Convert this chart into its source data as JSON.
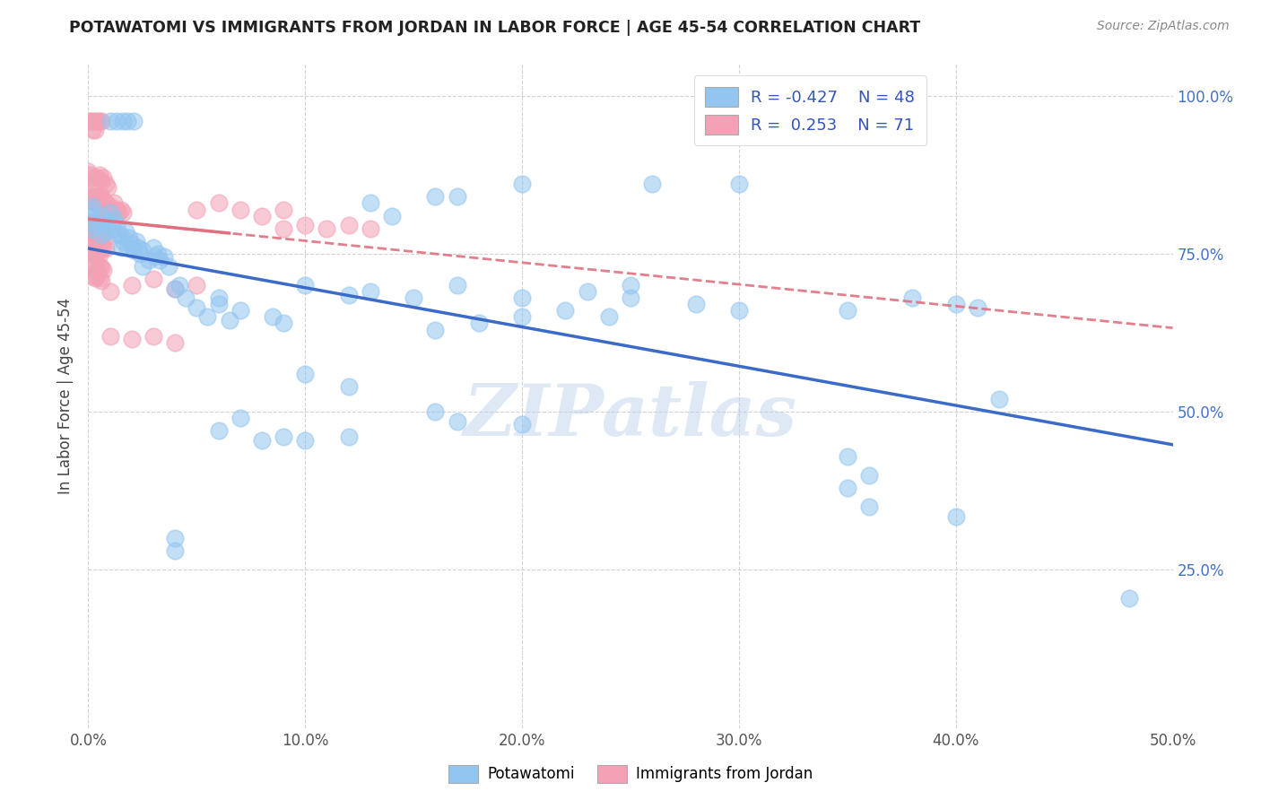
{
  "title": "POTAWATOMI VS IMMIGRANTS FROM JORDAN IN LABOR FORCE | AGE 45-54 CORRELATION CHART",
  "source": "Source: ZipAtlas.com",
  "ylabel": "In Labor Force | Age 45-54",
  "xlim": [
    0.0,
    0.5
  ],
  "ylim": [
    0.0,
    1.05
  ],
  "xticks": [
    0.0,
    0.1,
    0.2,
    0.3,
    0.4,
    0.5
  ],
  "yticks": [
    0.0,
    0.25,
    0.5,
    0.75,
    1.0
  ],
  "legend_r_blue": "-0.427",
  "legend_n_blue": "48",
  "legend_r_pink": "0.253",
  "legend_n_pink": "71",
  "blue_color": "#92C5F0",
  "pink_color": "#F4A0B5",
  "blue_line_color": "#3B6BC8",
  "pink_line_color": "#E07080",
  "watermark_text": "ZIPatlas",
  "blue_scatter": [
    [
      0.001,
      0.82
    ],
    [
      0.001,
      0.79
    ],
    [
      0.001,
      0.81
    ],
    [
      0.002,
      0.825
    ],
    [
      0.003,
      0.795
    ],
    [
      0.005,
      0.8
    ],
    [
      0.006,
      0.81
    ],
    [
      0.006,
      0.78
    ],
    [
      0.007,
      0.795
    ],
    [
      0.008,
      0.785
    ],
    [
      0.009,
      0.8
    ],
    [
      0.01,
      0.815
    ],
    [
      0.011,
      0.79
    ],
    [
      0.012,
      0.805
    ],
    [
      0.013,
      0.795
    ],
    [
      0.014,
      0.78
    ],
    [
      0.015,
      0.76
    ],
    [
      0.015,
      0.78
    ],
    [
      0.016,
      0.77
    ],
    [
      0.017,
      0.785
    ],
    [
      0.018,
      0.76
    ],
    [
      0.019,
      0.775
    ],
    [
      0.02,
      0.765
    ],
    [
      0.021,
      0.755
    ],
    [
      0.022,
      0.77
    ],
    [
      0.023,
      0.76
    ],
    [
      0.024,
      0.75
    ],
    [
      0.025,
      0.755
    ],
    [
      0.025,
      0.73
    ],
    [
      0.028,
      0.74
    ],
    [
      0.03,
      0.76
    ],
    [
      0.031,
      0.745
    ],
    [
      0.032,
      0.75
    ],
    [
      0.033,
      0.74
    ],
    [
      0.035,
      0.745
    ],
    [
      0.037,
      0.73
    ],
    [
      0.04,
      0.695
    ],
    [
      0.042,
      0.7
    ],
    [
      0.045,
      0.68
    ],
    [
      0.05,
      0.665
    ],
    [
      0.055,
      0.65
    ],
    [
      0.06,
      0.67
    ],
    [
      0.065,
      0.645
    ],
    [
      0.07,
      0.66
    ],
    [
      0.085,
      0.65
    ],
    [
      0.09,
      0.64
    ],
    [
      0.06,
      0.68
    ],
    [
      0.13,
      0.83
    ],
    [
      0.16,
      0.84
    ],
    [
      0.17,
      0.84
    ],
    [
      0.2,
      0.86
    ],
    [
      0.14,
      0.81
    ],
    [
      0.26,
      0.86
    ],
    [
      0.3,
      0.86
    ],
    [
      0.01,
      0.96
    ],
    [
      0.013,
      0.96
    ],
    [
      0.016,
      0.96
    ],
    [
      0.018,
      0.96
    ],
    [
      0.021,
      0.96
    ],
    [
      0.1,
      0.7
    ],
    [
      0.12,
      0.685
    ],
    [
      0.13,
      0.69
    ],
    [
      0.15,
      0.68
    ],
    [
      0.17,
      0.7
    ],
    [
      0.2,
      0.68
    ],
    [
      0.23,
      0.69
    ],
    [
      0.25,
      0.7
    ],
    [
      0.28,
      0.67
    ],
    [
      0.16,
      0.63
    ],
    [
      0.18,
      0.64
    ],
    [
      0.2,
      0.65
    ],
    [
      0.22,
      0.66
    ],
    [
      0.24,
      0.65
    ],
    [
      0.07,
      0.49
    ],
    [
      0.1,
      0.56
    ],
    [
      0.12,
      0.54
    ],
    [
      0.16,
      0.5
    ],
    [
      0.17,
      0.485
    ],
    [
      0.2,
      0.48
    ],
    [
      0.25,
      0.68
    ],
    [
      0.3,
      0.66
    ],
    [
      0.35,
      0.66
    ],
    [
      0.38,
      0.68
    ],
    [
      0.4,
      0.67
    ],
    [
      0.41,
      0.665
    ],
    [
      0.04,
      0.28
    ],
    [
      0.42,
      0.52
    ],
    [
      0.48,
      0.205
    ],
    [
      0.36,
      0.4
    ],
    [
      0.35,
      0.43
    ],
    [
      0.35,
      0.38
    ],
    [
      0.36,
      0.35
    ],
    [
      0.4,
      0.335
    ],
    [
      0.04,
      0.3
    ],
    [
      0.06,
      0.47
    ],
    [
      0.08,
      0.455
    ],
    [
      0.09,
      0.46
    ],
    [
      0.1,
      0.455
    ],
    [
      0.12,
      0.46
    ]
  ],
  "pink_scatter": [
    [
      0.0,
      0.96
    ],
    [
      0.001,
      0.96
    ],
    [
      0.002,
      0.96
    ],
    [
      0.003,
      0.96
    ],
    [
      0.004,
      0.96
    ],
    [
      0.005,
      0.96
    ],
    [
      0.006,
      0.96
    ],
    [
      0.002,
      0.945
    ],
    [
      0.003,
      0.945
    ],
    [
      0.0,
      0.88
    ],
    [
      0.001,
      0.875
    ],
    [
      0.002,
      0.87
    ],
    [
      0.003,
      0.865
    ],
    [
      0.004,
      0.87
    ],
    [
      0.005,
      0.875
    ],
    [
      0.006,
      0.865
    ],
    [
      0.007,
      0.87
    ],
    [
      0.008,
      0.86
    ],
    [
      0.009,
      0.855
    ],
    [
      0.0,
      0.845
    ],
    [
      0.001,
      0.84
    ],
    [
      0.001,
      0.835
    ],
    [
      0.002,
      0.84
    ],
    [
      0.002,
      0.835
    ],
    [
      0.003,
      0.84
    ],
    [
      0.003,
      0.83
    ],
    [
      0.004,
      0.838
    ],
    [
      0.004,
      0.832
    ],
    [
      0.005,
      0.836
    ],
    [
      0.005,
      0.828
    ],
    [
      0.006,
      0.84
    ],
    [
      0.006,
      0.825
    ],
    [
      0.007,
      0.835
    ],
    [
      0.007,
      0.82
    ],
    [
      0.008,
      0.83
    ],
    [
      0.008,
      0.815
    ],
    [
      0.009,
      0.82
    ],
    [
      0.01,
      0.825
    ],
    [
      0.01,
      0.815
    ],
    [
      0.011,
      0.82
    ],
    [
      0.012,
      0.83
    ],
    [
      0.012,
      0.815
    ],
    [
      0.013,
      0.82
    ],
    [
      0.014,
      0.815
    ],
    [
      0.015,
      0.82
    ],
    [
      0.016,
      0.815
    ],
    [
      0.0,
      0.8
    ],
    [
      0.001,
      0.795
    ],
    [
      0.002,
      0.798
    ],
    [
      0.003,
      0.8
    ],
    [
      0.004,
      0.795
    ],
    [
      0.005,
      0.8
    ],
    [
      0.006,
      0.795
    ],
    [
      0.007,
      0.8
    ],
    [
      0.008,
      0.796
    ],
    [
      0.0,
      0.785
    ],
    [
      0.001,
      0.783
    ],
    [
      0.002,
      0.78
    ],
    [
      0.003,
      0.778
    ],
    [
      0.004,
      0.78
    ],
    [
      0.005,
      0.782
    ],
    [
      0.006,
      0.778
    ],
    [
      0.007,
      0.78
    ],
    [
      0.008,
      0.776
    ],
    [
      0.0,
      0.77
    ],
    [
      0.001,
      0.768
    ],
    [
      0.002,
      0.765
    ],
    [
      0.003,
      0.763
    ],
    [
      0.004,
      0.768
    ],
    [
      0.005,
      0.765
    ],
    [
      0.006,
      0.762
    ],
    [
      0.007,
      0.76
    ],
    [
      0.008,
      0.758
    ],
    [
      0.0,
      0.755
    ],
    [
      0.001,
      0.753
    ],
    [
      0.002,
      0.75
    ],
    [
      0.003,
      0.748
    ],
    [
      0.004,
      0.75
    ],
    [
      0.005,
      0.748
    ],
    [
      0.002,
      0.73
    ],
    [
      0.003,
      0.728
    ],
    [
      0.004,
      0.725
    ],
    [
      0.005,
      0.73
    ],
    [
      0.006,
      0.728
    ],
    [
      0.007,
      0.725
    ],
    [
      0.002,
      0.715
    ],
    [
      0.003,
      0.712
    ],
    [
      0.004,
      0.715
    ],
    [
      0.005,
      0.712
    ],
    [
      0.006,
      0.708
    ],
    [
      0.05,
      0.82
    ],
    [
      0.06,
      0.83
    ],
    [
      0.07,
      0.82
    ],
    [
      0.08,
      0.81
    ],
    [
      0.09,
      0.82
    ],
    [
      0.09,
      0.79
    ],
    [
      0.1,
      0.795
    ],
    [
      0.11,
      0.79
    ],
    [
      0.12,
      0.795
    ],
    [
      0.13,
      0.79
    ],
    [
      0.01,
      0.69
    ],
    [
      0.02,
      0.7
    ],
    [
      0.03,
      0.71
    ],
    [
      0.04,
      0.695
    ],
    [
      0.05,
      0.7
    ],
    [
      0.01,
      0.62
    ],
    [
      0.02,
      0.615
    ],
    [
      0.03,
      0.62
    ],
    [
      0.04,
      0.61
    ]
  ]
}
